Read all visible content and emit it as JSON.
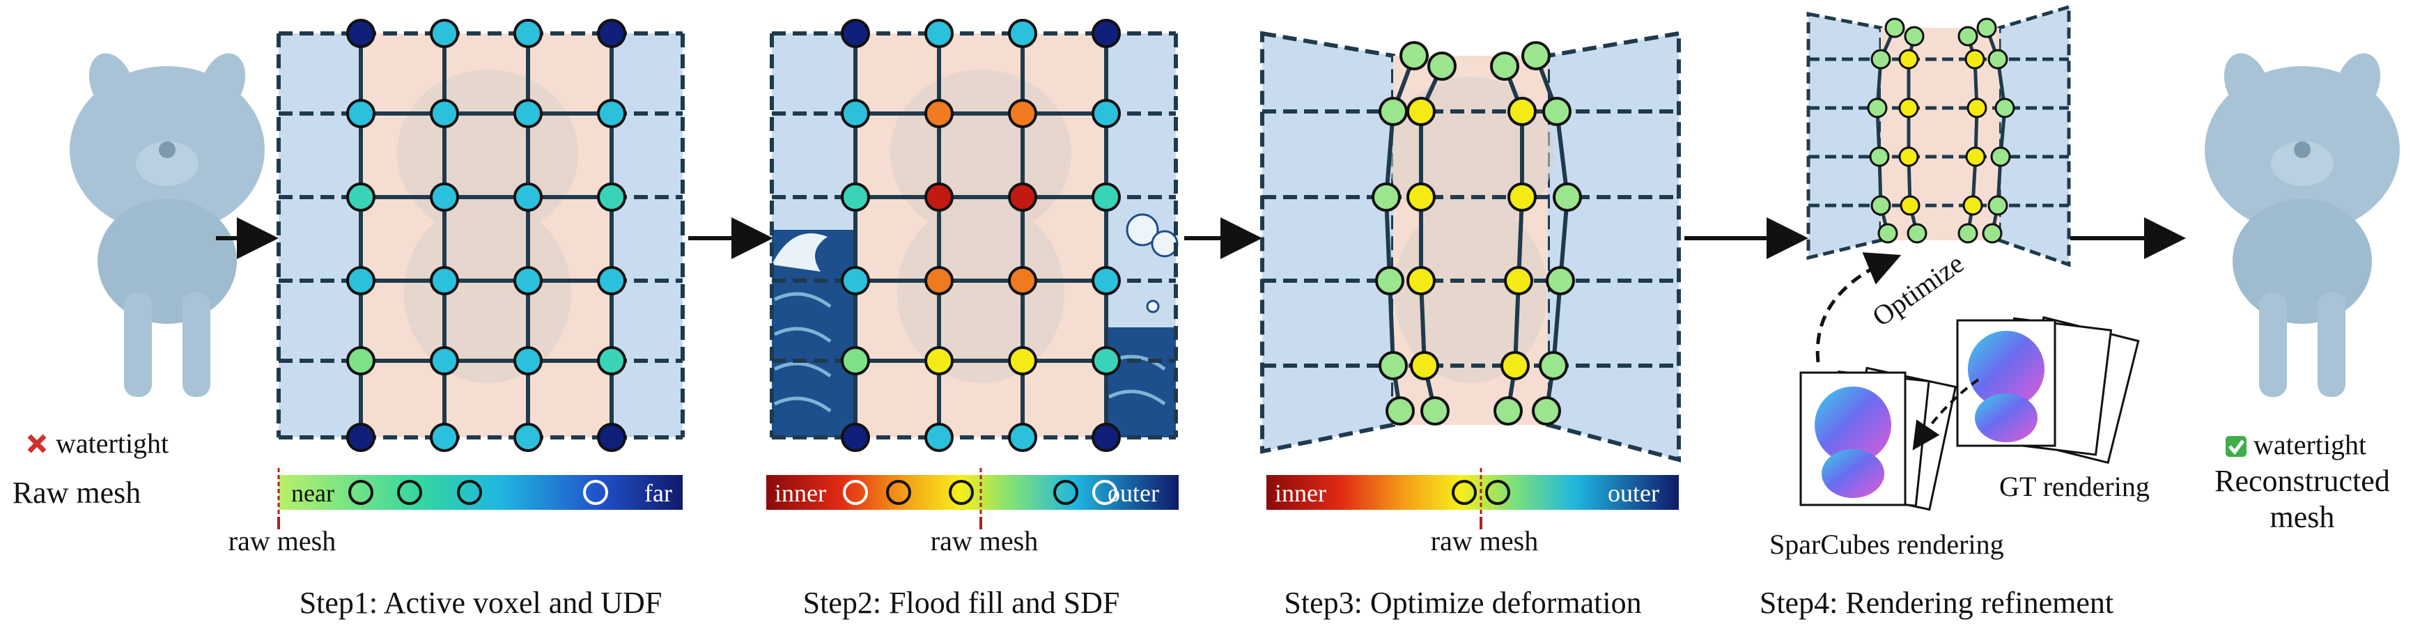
{
  "colors": {
    "grid_line": "#1f3a4d",
    "panel_blue": "#c9dcef",
    "panel_pink": "#f6ddd2",
    "mesh": "#a9c3d6",
    "mesh_rendered": "#d9cfc8",
    "arrow": "#111111",
    "raw_mesh_marker": "#b0201c",
    "cross_red": "#d0312d",
    "check_green": "#3fae49",
    "near_node": "#2bc0dc",
    "far_node": "#0f1f7a",
    "inner_node": "#c21a12",
    "mid_node": "#f07a20",
    "boundary_node": "#f4ea14",
    "light_node": "#9be58e"
  },
  "raw": {
    "status_icon": "cross-icon",
    "status_label": "watertight",
    "title": "Raw mesh"
  },
  "result": {
    "status_icon": "check-icon",
    "status_label": "watertight",
    "title_line1": "Reconstructed",
    "title_line2": "mesh"
  },
  "step1": {
    "caption": "Step1: Active voxel and UDF",
    "bar_left": "near",
    "bar_right": "far",
    "marker_label": "raw mesh"
  },
  "step2": {
    "caption": "Step2: Flood fill and SDF",
    "bar_left": "inner",
    "bar_right": "outer",
    "marker_label": "raw mesh"
  },
  "step3": {
    "caption": "Step3: Optimize deformation",
    "bar_left": "inner",
    "bar_right": "outer",
    "marker_label": "raw mesh"
  },
  "step4": {
    "caption": "Step4: Rendering refinement",
    "optimize_label": "Optimize",
    "sparcubes_label": "SparCubes rendering",
    "gt_label": "GT rendering"
  }
}
